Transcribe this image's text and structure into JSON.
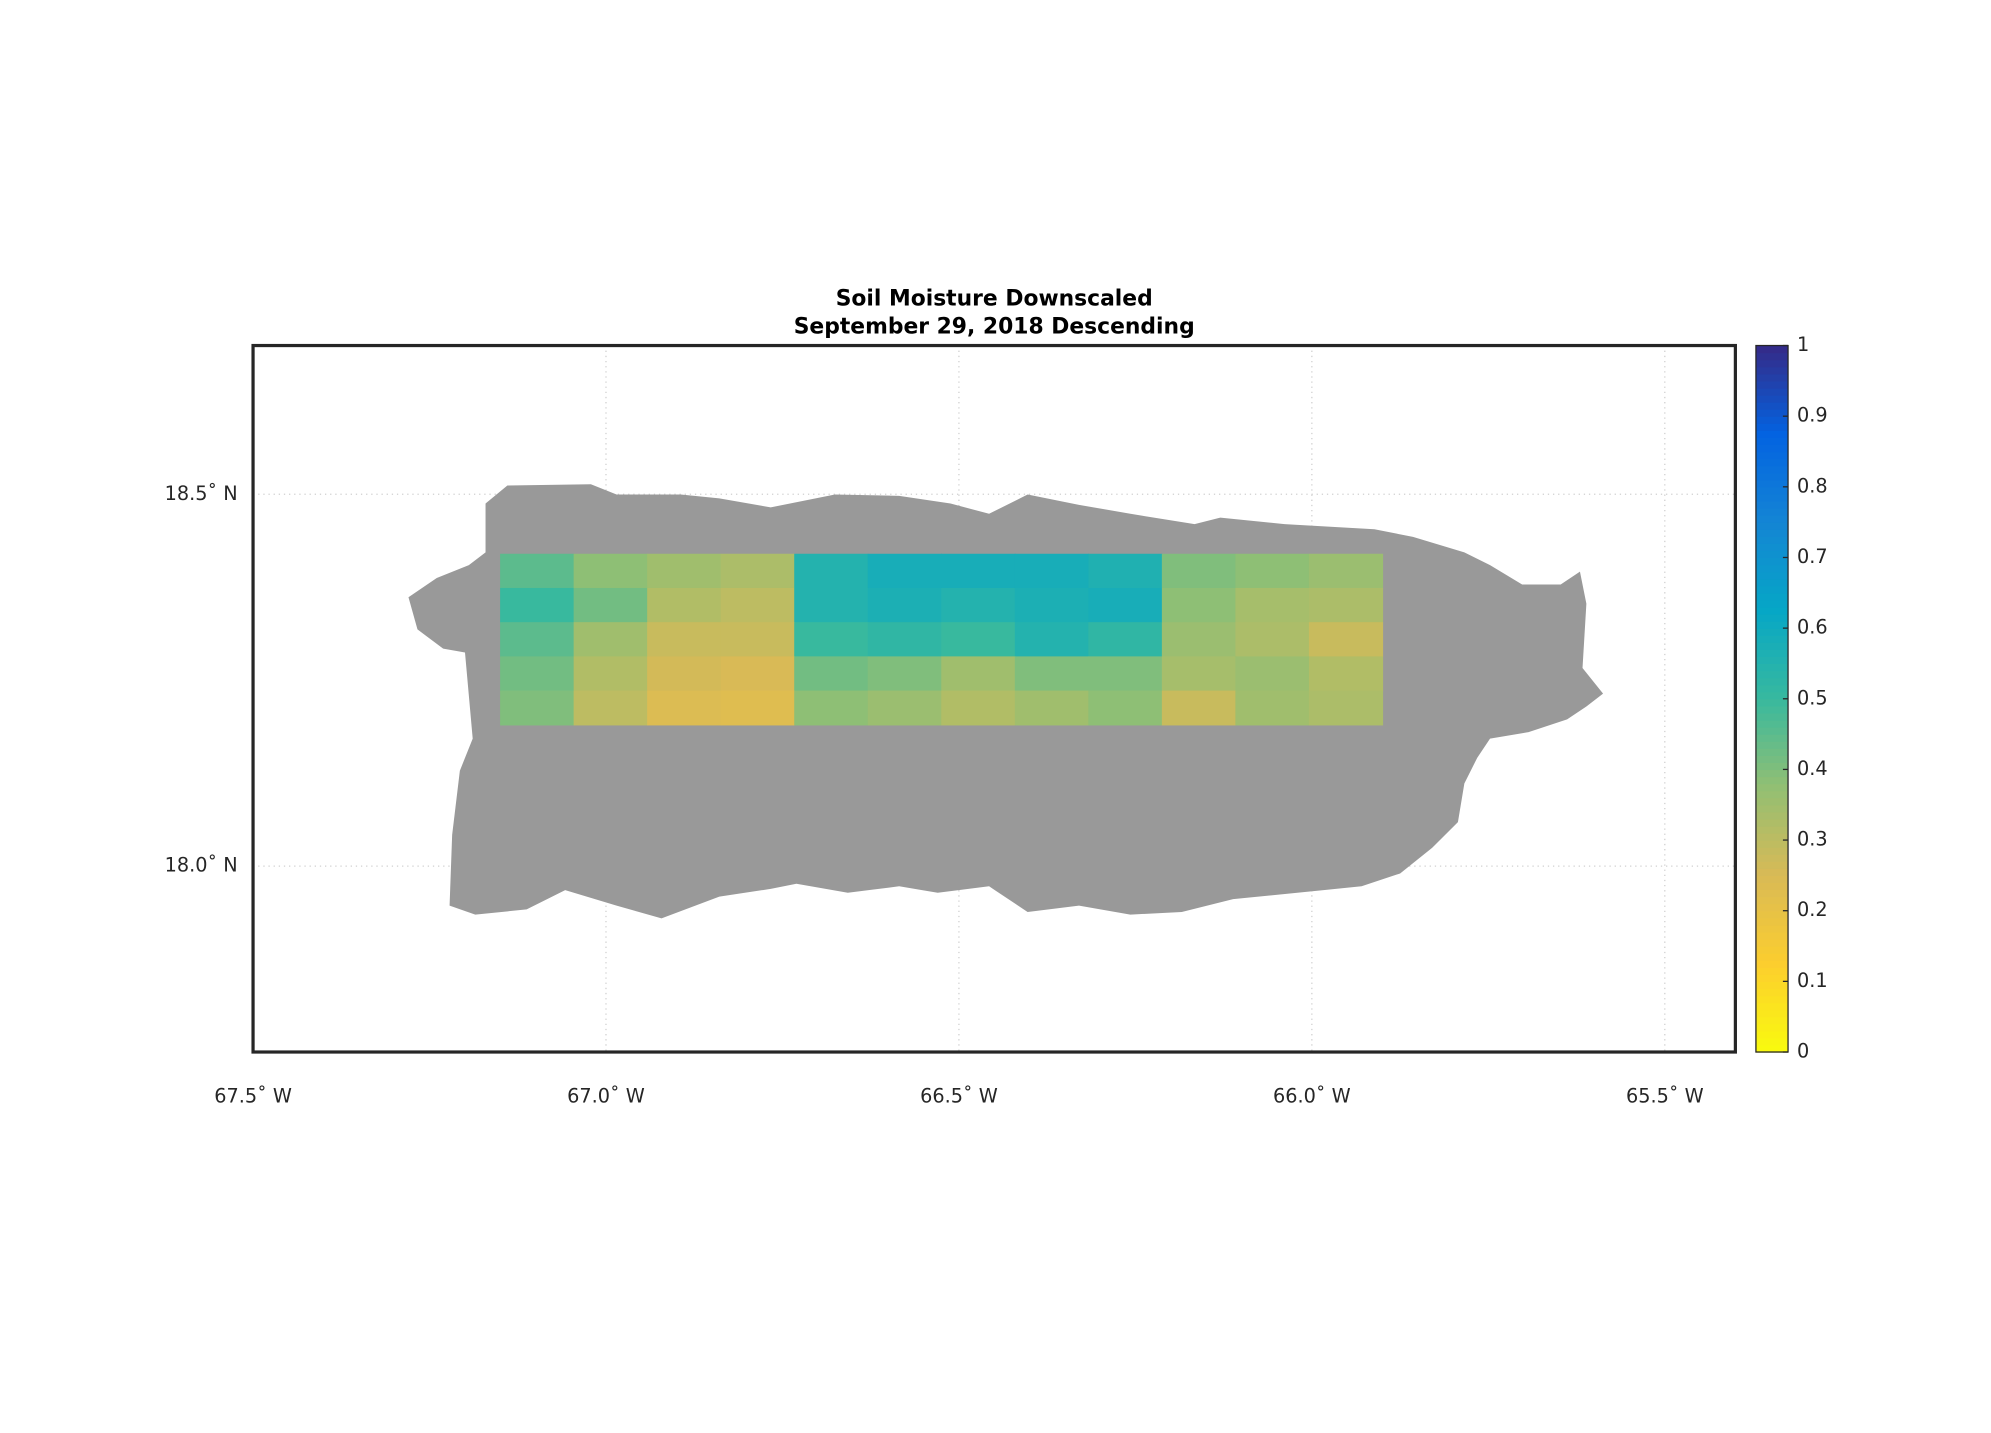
{
  "chart_data": {
    "type": "map",
    "title": [
      "Soil Moisture Downscaled",
      "September 29, 2018 Descending"
    ],
    "xlim": [
      -67.5,
      -65.4
    ],
    "ylim": [
      17.75,
      18.7
    ],
    "xticks": [
      {
        "value": -67.5,
        "label": "67.5˚ W"
      },
      {
        "value": -67.0,
        "label": "67.0˚ W"
      },
      {
        "value": -66.5,
        "label": "66.5˚ W"
      },
      {
        "value": -66.0,
        "label": "66.0˚ W"
      },
      {
        "value": -65.5,
        "label": "65.5˚ W"
      }
    ],
    "yticks": [
      {
        "value": 18.0,
        "label": "18.0˚ N"
      },
      {
        "value": 18.5,
        "label": "18.5˚ N"
      }
    ],
    "grid": true,
    "data_extent": {
      "lon": [
        -67.15,
        -65.9
      ],
      "lat": [
        18.19,
        18.42
      ]
    },
    "values": [
      [
        0.45,
        0.38,
        0.35,
        0.33,
        0.55,
        0.58,
        0.58,
        0.58,
        0.56,
        0.4,
        0.38,
        0.36
      ],
      [
        0.5,
        0.42,
        0.32,
        0.3,
        0.55,
        0.57,
        0.55,
        0.57,
        0.58,
        0.38,
        0.34,
        0.33
      ],
      [
        0.45,
        0.35,
        0.28,
        0.28,
        0.5,
        0.52,
        0.5,
        0.55,
        0.52,
        0.36,
        0.33,
        0.28
      ],
      [
        0.42,
        0.32,
        0.26,
        0.25,
        0.42,
        0.4,
        0.35,
        0.4,
        0.4,
        0.34,
        0.36,
        0.32
      ],
      [
        0.4,
        0.3,
        0.24,
        0.23,
        0.38,
        0.36,
        0.32,
        0.35,
        0.38,
        0.28,
        0.35,
        0.33
      ]
    ],
    "clim": [
      0,
      1
    ],
    "cticks": [
      0,
      0.1,
      0.2,
      0.3,
      0.4,
      0.5,
      0.6,
      0.7,
      0.8,
      0.9,
      1
    ]
  }
}
